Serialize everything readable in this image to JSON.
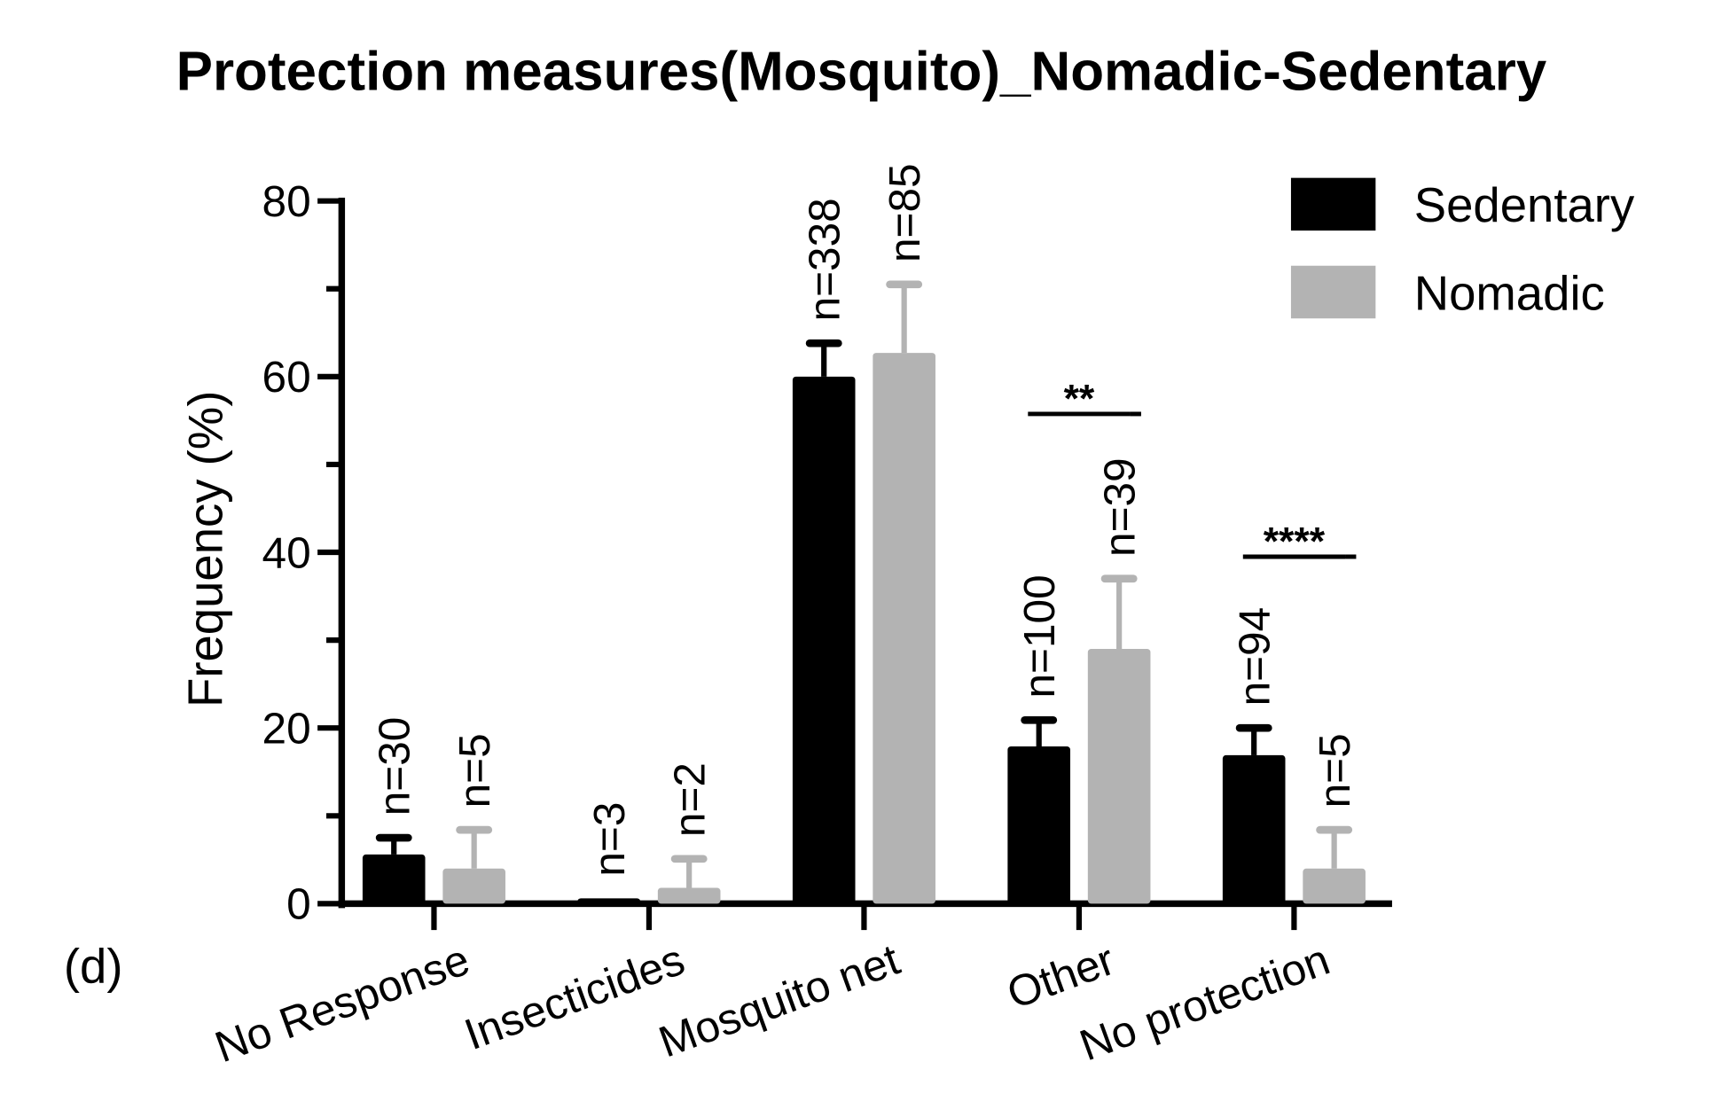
{
  "chart_data": {
    "type": "bar",
    "title": "Protection measures(Mosquito)_Nomadic-Sedentary",
    "panel_label": "(d)",
    "xlabel": "",
    "ylabel": "Frequency (%)",
    "ylim": [
      0,
      80
    ],
    "yticks": [
      "0",
      "20",
      "40",
      "60",
      "80"
    ],
    "categories": [
      "No Response",
      "Insecticides",
      "Mosquito net",
      "Other",
      "No protection"
    ],
    "legend_position": "top-right",
    "grid": false,
    "series": [
      {
        "name": "Sedentary",
        "color": "#000000",
        "values": [
          5.6,
          0.6,
          60.0,
          17.9,
          16.9
        ],
        "error_upper": [
          7.5,
          0.6,
          63.8,
          20.9,
          20.0
        ],
        "n_labels": [
          "n=30",
          "n=3",
          "n=338",
          "n=100",
          "n=94"
        ]
      },
      {
        "name": "Nomadic",
        "color": "#b3b3b3",
        "values": [
          4.0,
          1.8,
          62.7,
          29.0,
          4.0
        ],
        "error_upper": [
          8.4,
          5.1,
          70.5,
          37.0,
          8.4
        ],
        "n_labels": [
          "n=5",
          "n=2",
          "n=85",
          "n=39",
          "n=5"
        ]
      }
    ],
    "significance": [
      {
        "category": "Other",
        "label": "**"
      },
      {
        "category": "No protection",
        "label": "****"
      }
    ]
  }
}
